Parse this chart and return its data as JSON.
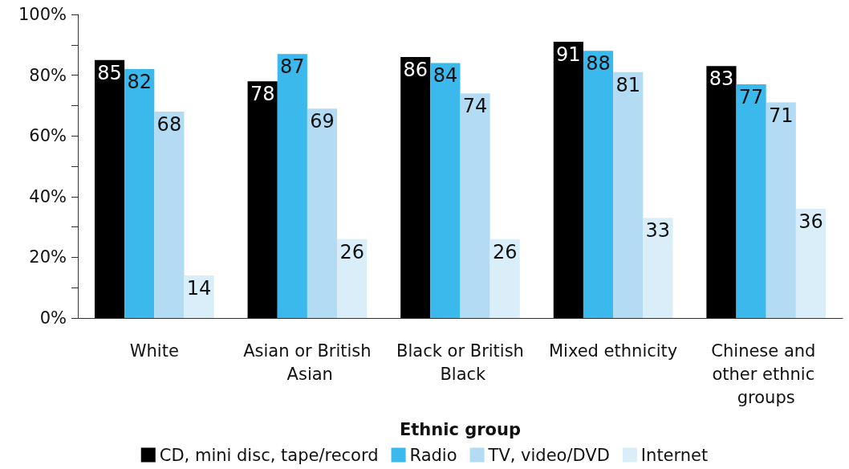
{
  "chart_data": {
    "type": "bar",
    "xlabel": "Ethnic group",
    "categories": [
      "White",
      "Asian or British Asian",
      "Black or British Black",
      "Mixed ethnicity",
      "Chinese and other ethnic groups"
    ],
    "series": [
      {
        "name": "CD, mini disc, tape/record",
        "color": "#000000",
        "values": [
          85,
          78,
          86,
          91,
          83
        ]
      },
      {
        "name": "Radio",
        "color": "#3bb9ec",
        "values": [
          82,
          87,
          84,
          88,
          77
        ]
      },
      {
        "name": "TV, video/DVD",
        "color": "#b3dcf4",
        "values": [
          68,
          69,
          74,
          81,
          71
        ]
      },
      {
        "name": "Internet",
        "color": "#daeefa",
        "values": [
          14,
          26,
          26,
          33,
          36
        ]
      }
    ],
    "ylim": [
      0,
      100
    ],
    "yticks": [
      {
        "value": 0,
        "label": "0%"
      },
      {
        "value": 10,
        "label": null
      },
      {
        "value": 20,
        "label": "20%"
      },
      {
        "value": 30,
        "label": null
      },
      {
        "value": 40,
        "label": "40%"
      },
      {
        "value": 50,
        "label": null
      },
      {
        "value": 60,
        "label": "60%"
      },
      {
        "value": 70,
        "label": null
      },
      {
        "value": 80,
        "label": "80%"
      },
      {
        "value": 90,
        "label": null
      },
      {
        "value": 100,
        "label": "100%"
      }
    ],
    "data_labels": true,
    "grid": false,
    "legend": "bottom"
  }
}
